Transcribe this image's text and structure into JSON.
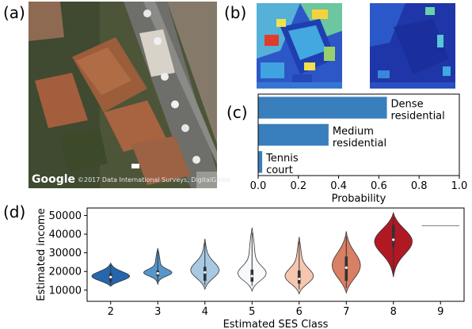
{
  "panels": {
    "a": {
      "label": "(a)",
      "attribution": "Google",
      "credit": "©2017 Data International Surveys, DigitalGlobe"
    },
    "b": {
      "label": "(b)"
    },
    "c": {
      "label": "(c)"
    },
    "d": {
      "label": "(d)"
    }
  },
  "colors": {
    "bar": "#3a7fbd",
    "violins": [
      "#2566ad",
      "#5596cc",
      "#a7c9e3",
      "#f7f9fb",
      "#f6c6ae",
      "#d87f64",
      "#b01824",
      "#b01824"
    ]
  },
  "chart_data": [
    {
      "type": "bar",
      "orientation": "horizontal",
      "categories": [
        "Dense residential",
        "Medium residential",
        "Tennis court"
      ],
      "category_lines": [
        [
          "Dense",
          "residential"
        ],
        [
          "Medium",
          "residential"
        ],
        [
          "Tennis",
          "court"
        ]
      ],
      "values": [
        0.64,
        0.35,
        0.02
      ],
      "xlabel": "Probability",
      "ylabel": "",
      "xlim": [
        0.0,
        1.0
      ],
      "xticks": [
        "0.0",
        "0.2",
        "0.4",
        "0.6",
        "0.8",
        "1.0"
      ],
      "grid": false
    },
    {
      "type": "violin",
      "categories": [
        "2",
        "3",
        "4",
        "5",
        "6",
        "7",
        "8",
        "9"
      ],
      "xlabel": "Estimated SES Class",
      "ylabel": "Estimated income",
      "ylim": [
        4000,
        54000
      ],
      "yticks": [
        "10000",
        "20000",
        "30000",
        "40000",
        "50000"
      ],
      "series": [
        {
          "class": "2",
          "min": 12000,
          "max": 24500,
          "q1": 14500,
          "median": 17000,
          "q3": 19000
        },
        {
          "class": "3",
          "min": 13000,
          "max": 32500,
          "q1": 17500,
          "median": 19000,
          "q3": 20500
        },
        {
          "class": "4",
          "min": 10500,
          "max": 37500,
          "q1": 15000,
          "median": 19500,
          "q3": 22500
        },
        {
          "class": "5",
          "min": 9500,
          "max": 43500,
          "q1": 14500,
          "median": 17500,
          "q3": 21000
        },
        {
          "class": "6",
          "min": 8000,
          "max": 38500,
          "q1": 13500,
          "median": 16000,
          "q3": 20500
        },
        {
          "class": "7",
          "min": 8500,
          "max": 41500,
          "q1": 15000,
          "median": 22000,
          "q3": 28000
        },
        {
          "class": "8",
          "min": 17000,
          "max": 51500,
          "q1": 33000,
          "median": 37000,
          "q3": 45000
        },
        {
          "class": "9",
          "min": 44500,
          "max": 44500,
          "q1": 44500,
          "median": 44500,
          "q3": 44500
        }
      ]
    }
  ]
}
